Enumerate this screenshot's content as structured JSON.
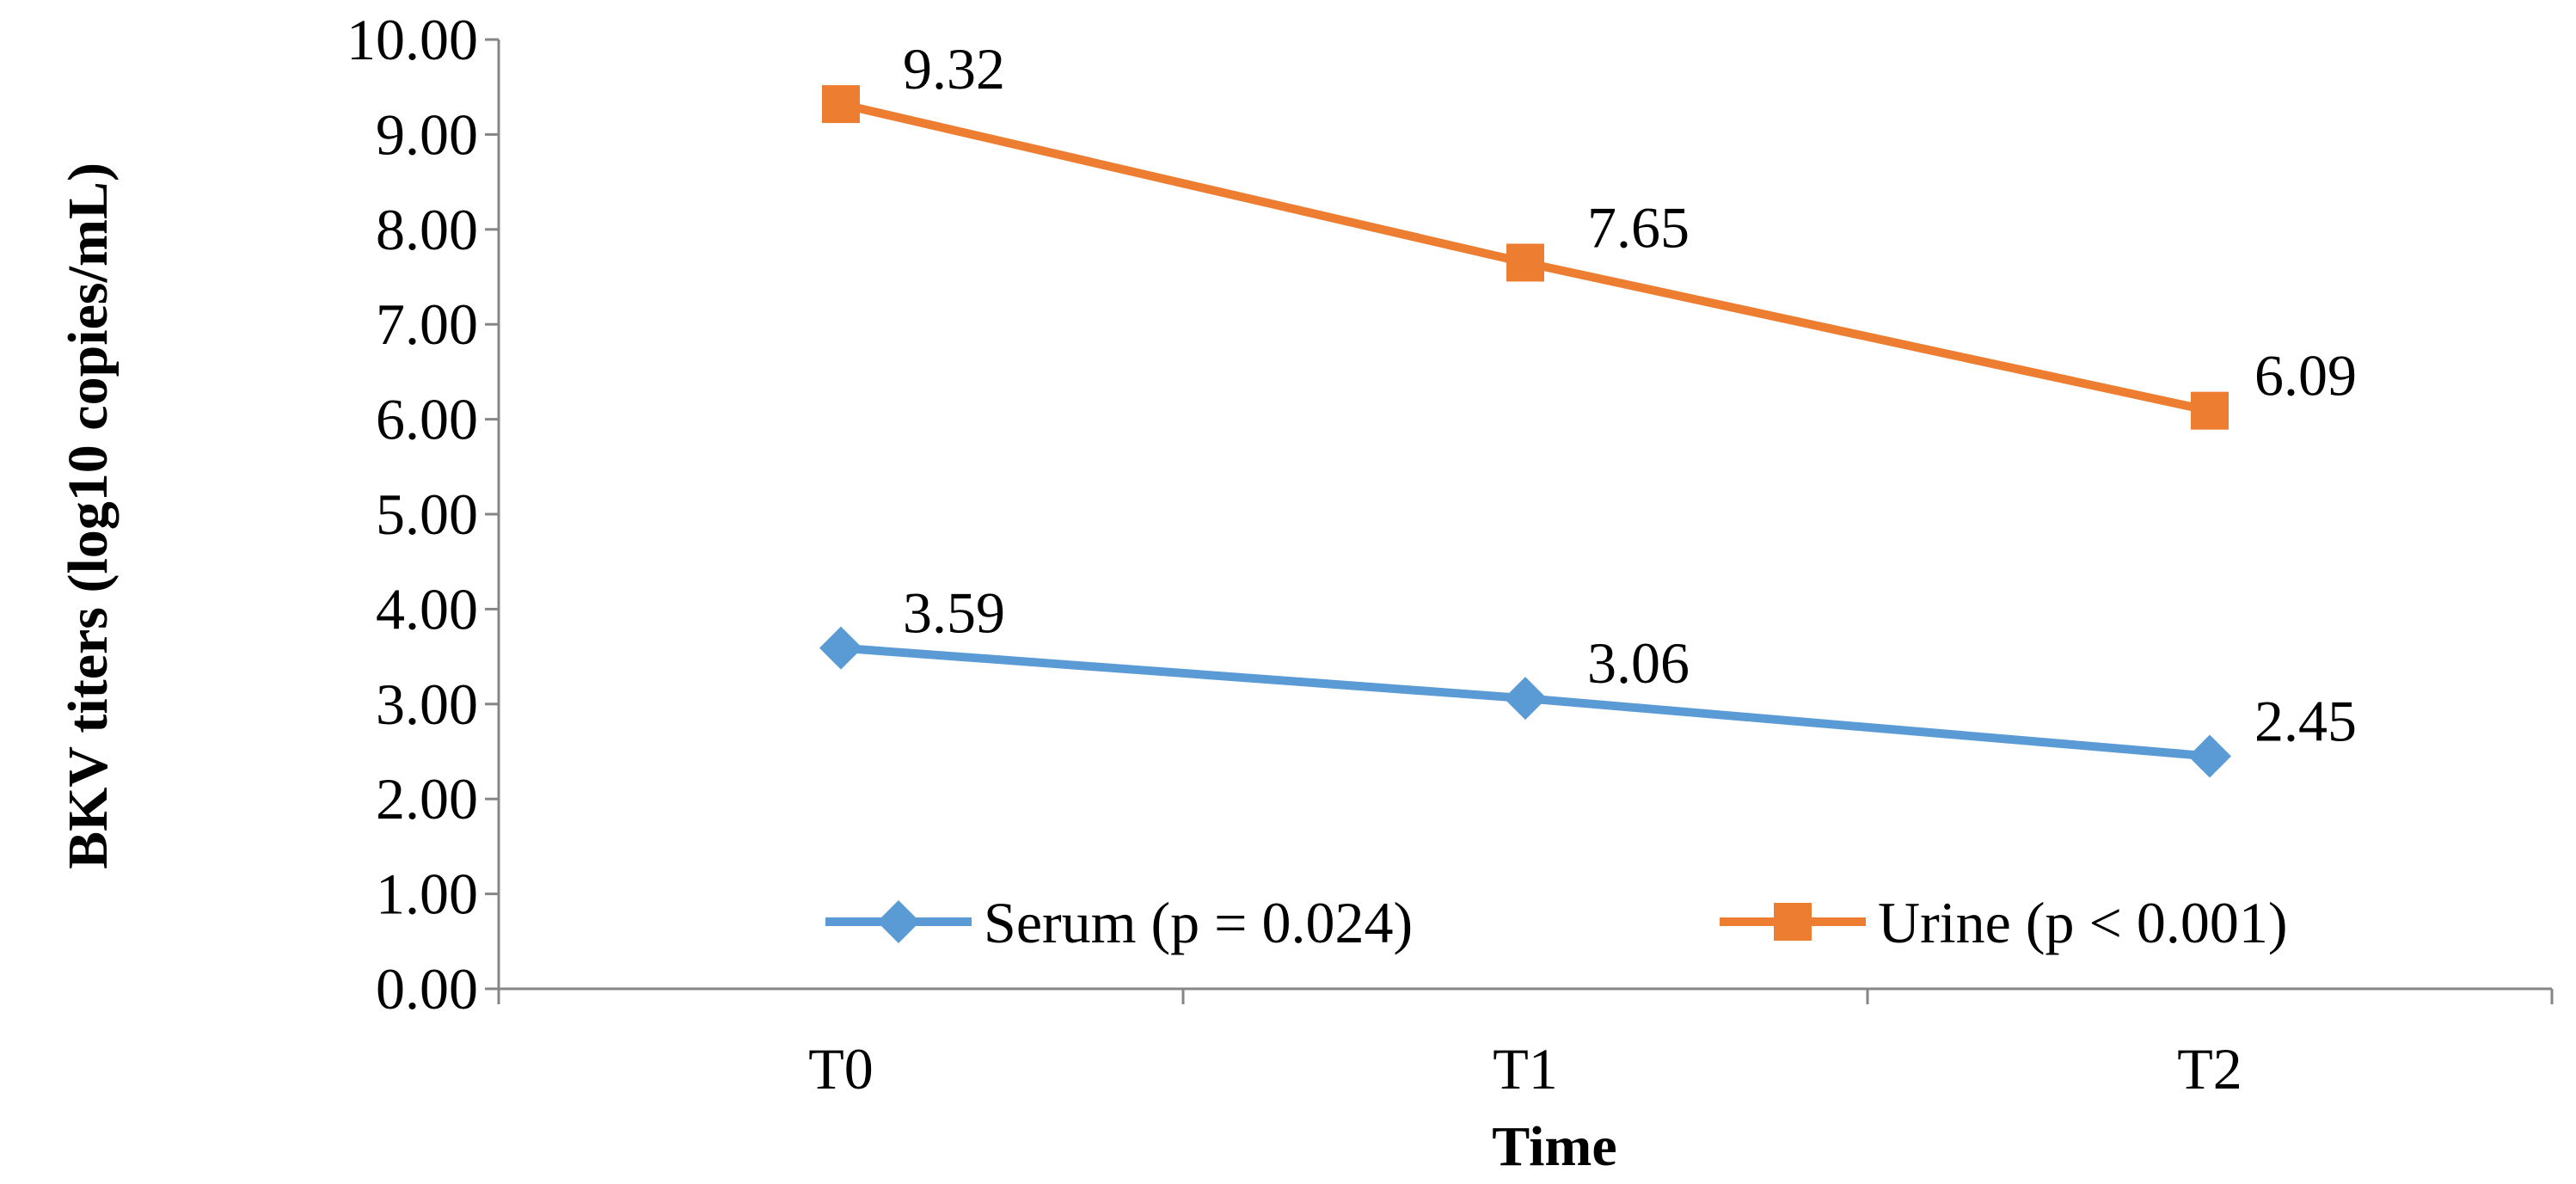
{
  "chart_data": {
    "type": "line",
    "title": "",
    "xlabel": "Time",
    "ylabel": "BKV titers (log10 copies/mL)",
    "categories": [
      "T0",
      "T1",
      "T2"
    ],
    "ylim": [
      0,
      10
    ],
    "ytick_step": 1,
    "yticks": [
      "0.00",
      "1.00",
      "2.00",
      "3.00",
      "4.00",
      "5.00",
      "6.00",
      "7.00",
      "8.00",
      "9.00",
      "10.00"
    ],
    "grid": false,
    "legend_position": "bottom-inside",
    "series": [
      {
        "name": "Serum (p = 0.024)",
        "values": [
          3.59,
          3.06,
          2.45
        ],
        "labels": [
          "3.59",
          "3.06",
          "2.45"
        ],
        "color": "#5B9BD5",
        "marker": "diamond"
      },
      {
        "name": "Urine (p < 0.001)",
        "values": [
          9.32,
          7.65,
          6.09
        ],
        "labels": [
          "9.32",
          "7.65",
          "6.09"
        ],
        "color": "#ED7D31",
        "marker": "square"
      }
    ]
  }
}
